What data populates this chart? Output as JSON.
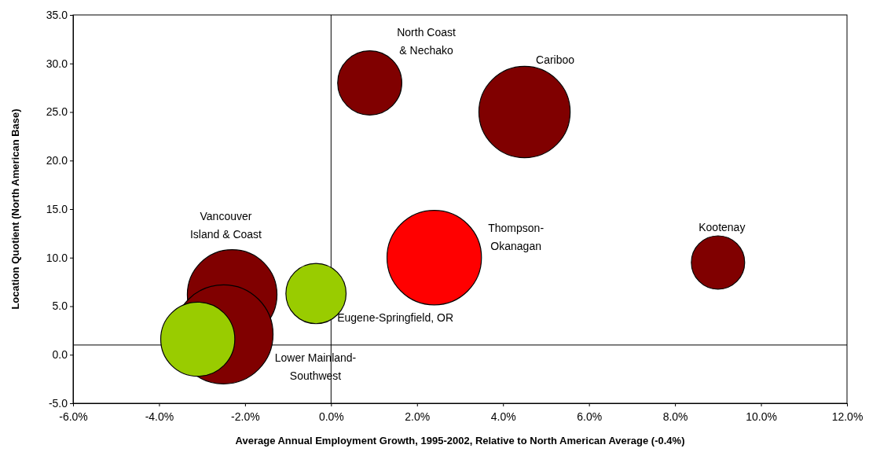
{
  "chart_data": {
    "type": "bubble",
    "xlabel": "Average Annual Employment Growth, 1995-2002, Relative to North American Average (-0.4%)",
    "ylabel": "Location Quotient (North American Base)",
    "xlim": [
      -6,
      12
    ],
    "xticks": [
      {
        "value": -6,
        "label": "-6.0%"
      },
      {
        "value": -4,
        "label": "-4.0%"
      },
      {
        "value": -2,
        "label": "-2.0%"
      },
      {
        "value": 0,
        "label": "0.0%"
      },
      {
        "value": 2,
        "label": "2.0%"
      },
      {
        "value": 4,
        "label": "4.0%"
      },
      {
        "value": 6,
        "label": "6.0%"
      },
      {
        "value": 8,
        "label": "8.0%"
      },
      {
        "value": 10,
        "label": "10.0%"
      },
      {
        "value": 12,
        "label": "12.0%"
      }
    ],
    "ylim": [
      -5,
      35
    ],
    "yticks": [
      {
        "value": -5,
        "label": "-5.0"
      },
      {
        "value": 0,
        "label": "0.0"
      },
      {
        "value": 5,
        "label": "5.0"
      },
      {
        "value": 10,
        "label": "10.0"
      },
      {
        "value": 15,
        "label": "15.0"
      },
      {
        "value": 20,
        "label": "20.0"
      },
      {
        "value": 25,
        "label": "25.0"
      },
      {
        "value": 30,
        "label": "30.0"
      },
      {
        "value": 35,
        "label": "35.0"
      }
    ],
    "grid": false,
    "legend": false,
    "ref_lines": [
      {
        "axis": "x",
        "value": 0,
        "color": "#000000"
      },
      {
        "axis": "y",
        "value": 1,
        "color": "#000000"
      }
    ],
    "series": [
      {
        "name": "North Coast & Nechako",
        "color": "#800000",
        "x": [
          0.9
        ],
        "values": [
          28.0
        ],
        "sizes": [
          0.42
        ]
      },
      {
        "name": "Cariboo",
        "color": "#800000",
        "x": [
          4.5
        ],
        "values": [
          25.0
        ],
        "sizes": [
          0.85
        ]
      },
      {
        "name": "Thompson-Okanagan",
        "color": "#ff0000",
        "x": [
          2.4
        ],
        "values": [
          10.0
        ],
        "sizes": [
          0.91
        ]
      },
      {
        "name": "Kootenay",
        "color": "#800000",
        "x": [
          9.0
        ],
        "values": [
          9.5
        ],
        "sizes": [
          0.29
        ]
      },
      {
        "name": "Vancouver Island & Coast",
        "color": "#800000",
        "x": [
          -2.3
        ],
        "values": [
          6.2
        ],
        "sizes": [
          0.82
        ]
      },
      {
        "name": "Eugene-Springfield, OR",
        "color": "#99cc00",
        "x": [
          -0.35
        ],
        "values": [
          6.3
        ],
        "sizes": [
          0.37
        ]
      },
      {
        "name": "Lower Mainland-Southwest",
        "color": "#800000",
        "x": [
          -2.5
        ],
        "values": [
          2.1
        ],
        "sizes": [
          1
        ]
      },
      {
        "color": "#99cc00",
        "x": [
          -3.1
        ],
        "values": [
          1.6
        ],
        "sizes": [
          0.56
        ]
      }
    ]
  }
}
